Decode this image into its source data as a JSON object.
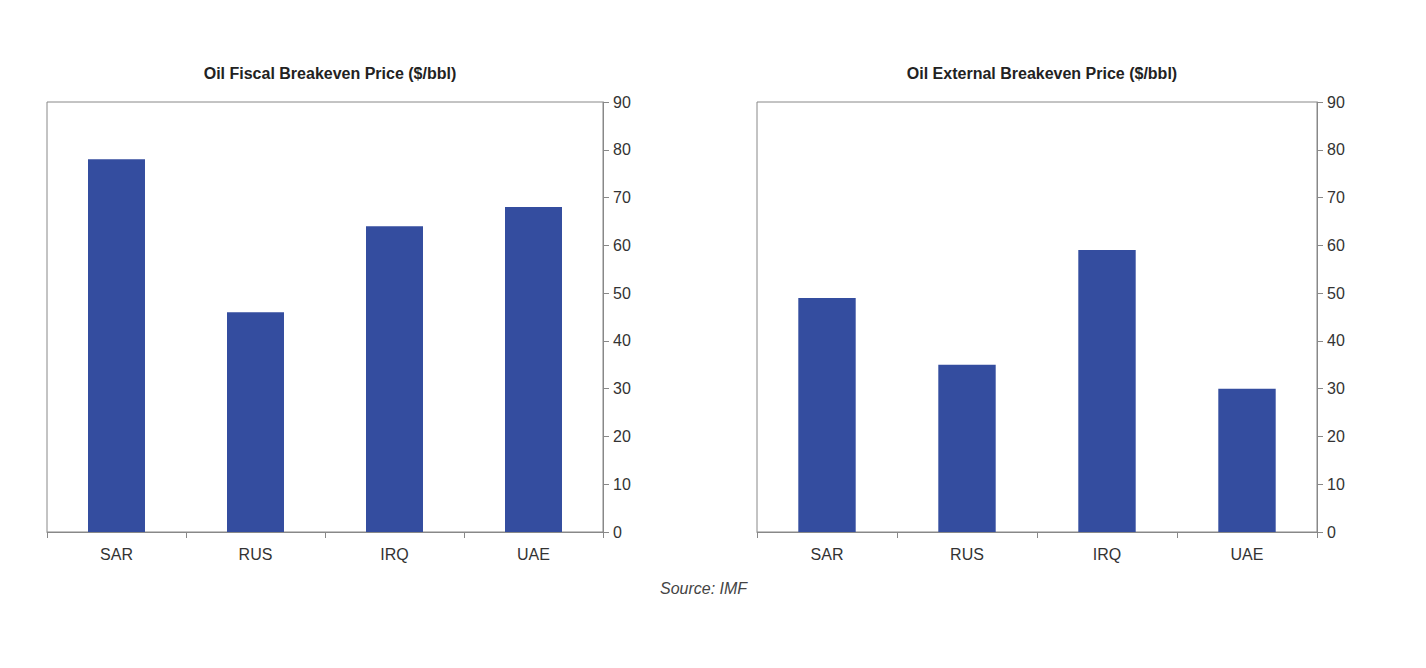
{
  "chart_data": [
    {
      "type": "bar",
      "title": "Oil Fiscal Breakeven Price ($/bbl)",
      "categories": [
        "SAR",
        "RUS",
        "IRQ",
        "UAE"
      ],
      "values": [
        78,
        46,
        64,
        68
      ],
      "color": "#344d9f",
      "ylim": [
        0,
        90
      ],
      "yticks": [
        0,
        10,
        20,
        30,
        40,
        50,
        60,
        70,
        80,
        90
      ],
      "grid": false
    },
    {
      "type": "bar",
      "title": "Oil External Breakeven Price ($/bbl)",
      "categories": [
        "SAR",
        "RUS",
        "IRQ",
        "UAE"
      ],
      "values": [
        49,
        35,
        59,
        30
      ],
      "color": "#344d9f",
      "ylim": [
        0,
        90
      ],
      "yticks": [
        0,
        10,
        20,
        30,
        40,
        50,
        60,
        70,
        80,
        90
      ],
      "grid": false
    }
  ],
  "source": "Source: IMF"
}
